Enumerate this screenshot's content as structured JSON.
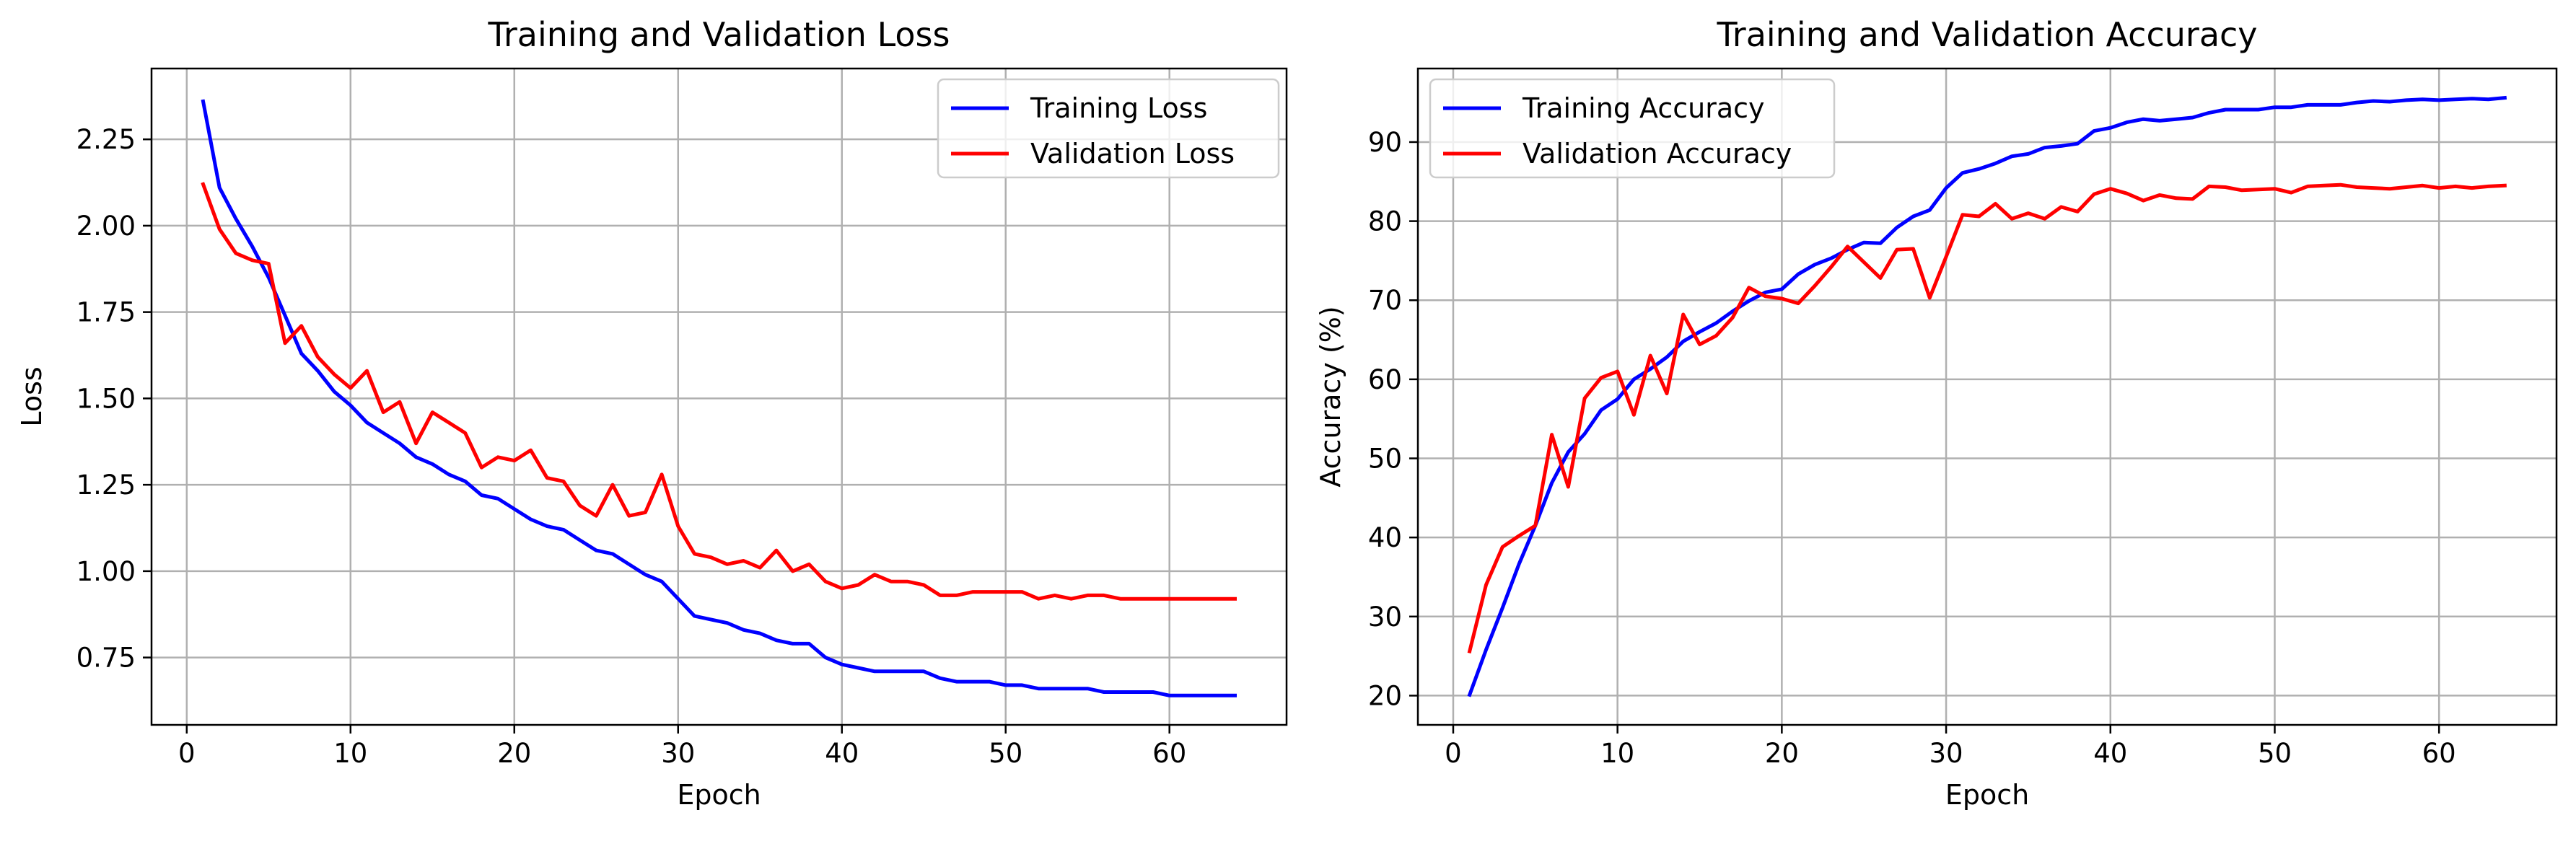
{
  "chart_data": [
    {
      "type": "line",
      "title": "Training and Validation Loss",
      "xlabel": "Epoch",
      "ylabel": "Loss",
      "xlim": [
        -2.15,
        67.15
      ],
      "ylim": [
        0.555,
        2.455
      ],
      "xticks": [
        0,
        10,
        20,
        30,
        40,
        50,
        60
      ],
      "xtick_labels": [
        "0",
        "10",
        "20",
        "30",
        "40",
        "50",
        "60"
      ],
      "yticks": [
        0.75,
        1.0,
        1.25,
        1.5,
        1.75,
        2.0,
        2.25
      ],
      "ytick_labels": [
        "0.75",
        "1.00",
        "1.25",
        "1.50",
        "1.75",
        "2.00",
        "2.25"
      ],
      "grid": true,
      "legend_position": "upper right",
      "x": [
        1,
        2,
        3,
        4,
        5,
        6,
        7,
        8,
        9,
        10,
        11,
        12,
        13,
        14,
        15,
        16,
        17,
        18,
        19,
        20,
        21,
        22,
        23,
        24,
        25,
        26,
        27,
        28,
        29,
        30,
        31,
        32,
        33,
        34,
        35,
        36,
        37,
        38,
        39,
        40,
        41,
        42,
        43,
        44,
        45,
        46,
        47,
        48,
        49,
        50,
        51,
        52,
        53,
        54,
        55,
        56,
        57,
        58,
        59,
        60,
        61,
        62,
        63,
        64
      ],
      "series": [
        {
          "name": "Training Loss",
          "color": "#0000ff",
          "values": [
            2.36,
            2.11,
            2.02,
            1.94,
            1.85,
            1.74,
            1.63,
            1.58,
            1.52,
            1.48,
            1.43,
            1.4,
            1.37,
            1.33,
            1.31,
            1.28,
            1.26,
            1.22,
            1.21,
            1.18,
            1.15,
            1.13,
            1.12,
            1.09,
            1.06,
            1.05,
            1.02,
            0.99,
            0.97,
            0.92,
            0.87,
            0.86,
            0.85,
            0.83,
            0.82,
            0.8,
            0.79,
            0.79,
            0.75,
            0.73,
            0.72,
            0.71,
            0.71,
            0.71,
            0.71,
            0.69,
            0.68,
            0.68,
            0.68,
            0.67,
            0.67,
            0.66,
            0.66,
            0.66,
            0.66,
            0.65,
            0.65,
            0.65,
            0.65,
            0.64,
            0.64,
            0.64,
            0.64,
            0.64
          ]
        },
        {
          "name": "Validation Loss",
          "color": "#ff0000",
          "values": [
            2.12,
            1.99,
            1.92,
            1.9,
            1.89,
            1.66,
            1.71,
            1.62,
            1.57,
            1.53,
            1.58,
            1.46,
            1.49,
            1.37,
            1.46,
            1.43,
            1.4,
            1.3,
            1.33,
            1.32,
            1.35,
            1.27,
            1.26,
            1.19,
            1.16,
            1.25,
            1.16,
            1.17,
            1.28,
            1.13,
            1.05,
            1.04,
            1.02,
            1.03,
            1.01,
            1.06,
            1.0,
            1.02,
            0.97,
            0.95,
            0.96,
            0.99,
            0.97,
            0.97,
            0.96,
            0.93,
            0.93,
            0.94,
            0.94,
            0.94,
            0.94,
            0.92,
            0.93,
            0.92,
            0.93,
            0.93,
            0.92,
            0.92,
            0.92,
            0.92,
            0.92,
            0.92,
            0.92,
            0.92
          ]
        }
      ]
    },
    {
      "type": "line",
      "title": "Training and Validation Accuracy",
      "xlabel": "Epoch",
      "ylabel": "Accuracy (%)",
      "xlim": [
        -2.15,
        67.15
      ],
      "ylim": [
        16.3,
        99.3
      ],
      "xticks": [
        0,
        10,
        20,
        30,
        40,
        50,
        60
      ],
      "xtick_labels": [
        "0",
        "10",
        "20",
        "30",
        "40",
        "50",
        "60"
      ],
      "yticks": [
        20,
        30,
        40,
        50,
        60,
        70,
        80,
        90
      ],
      "ytick_labels": [
        "20",
        "30",
        "40",
        "50",
        "60",
        "70",
        "80",
        "90"
      ],
      "grid": true,
      "legend_position": "upper left",
      "x": [
        1,
        2,
        3,
        4,
        5,
        6,
        7,
        8,
        9,
        10,
        11,
        12,
        13,
        14,
        15,
        16,
        17,
        18,
        19,
        20,
        21,
        22,
        23,
        24,
        25,
        26,
        27,
        28,
        29,
        30,
        31,
        32,
        33,
        34,
        35,
        36,
        37,
        38,
        39,
        40,
        41,
        42,
        43,
        44,
        45,
        46,
        47,
        48,
        49,
        50,
        51,
        52,
        53,
        54,
        55,
        56,
        57,
        58,
        59,
        60,
        61,
        62,
        63,
        64
      ],
      "series": [
        {
          "name": "Training Accuracy",
          "color": "#0000ff",
          "values": [
            20.1,
            25.8,
            31.1,
            36.6,
            41.5,
            46.9,
            50.8,
            53.1,
            56.1,
            57.5,
            60.0,
            61.3,
            62.8,
            64.8,
            66.0,
            67.1,
            68.6,
            69.9,
            71.0,
            71.4,
            73.3,
            74.5,
            75.3,
            76.4,
            77.3,
            77.2,
            79.2,
            80.6,
            81.4,
            84.2,
            86.1,
            86.6,
            87.3,
            88.2,
            88.5,
            89.3,
            89.5,
            89.8,
            91.4,
            91.8,
            92.5,
            92.9,
            92.7,
            92.9,
            93.1,
            93.7,
            94.1,
            94.1,
            94.1,
            94.4,
            94.4,
            94.7,
            94.7,
            94.7,
            95.0,
            95.2,
            95.1,
            95.3,
            95.4,
            95.3,
            95.4,
            95.5,
            95.4,
            95.6
          ]
        },
        {
          "name": "Validation Accuracy",
          "color": "#ff0000",
          "values": [
            25.6,
            34.0,
            38.8,
            40.2,
            41.5,
            53.0,
            46.4,
            57.6,
            60.2,
            61.0,
            55.5,
            63.0,
            58.2,
            68.2,
            64.4,
            65.5,
            67.8,
            71.6,
            70.5,
            70.2,
            69.6,
            71.8,
            74.2,
            76.8,
            74.8,
            72.8,
            76.4,
            76.5,
            70.3,
            75.5,
            80.8,
            80.6,
            82.2,
            80.3,
            81.0,
            80.3,
            81.8,
            81.2,
            83.4,
            84.1,
            83.5,
            82.6,
            83.3,
            82.9,
            82.8,
            84.4,
            84.3,
            83.9,
            84.0,
            84.1,
            83.6,
            84.4,
            84.5,
            84.6,
            84.3,
            84.2,
            84.1,
            84.3,
            84.5,
            84.2,
            84.4,
            84.2,
            84.4,
            84.5
          ]
        }
      ]
    }
  ]
}
